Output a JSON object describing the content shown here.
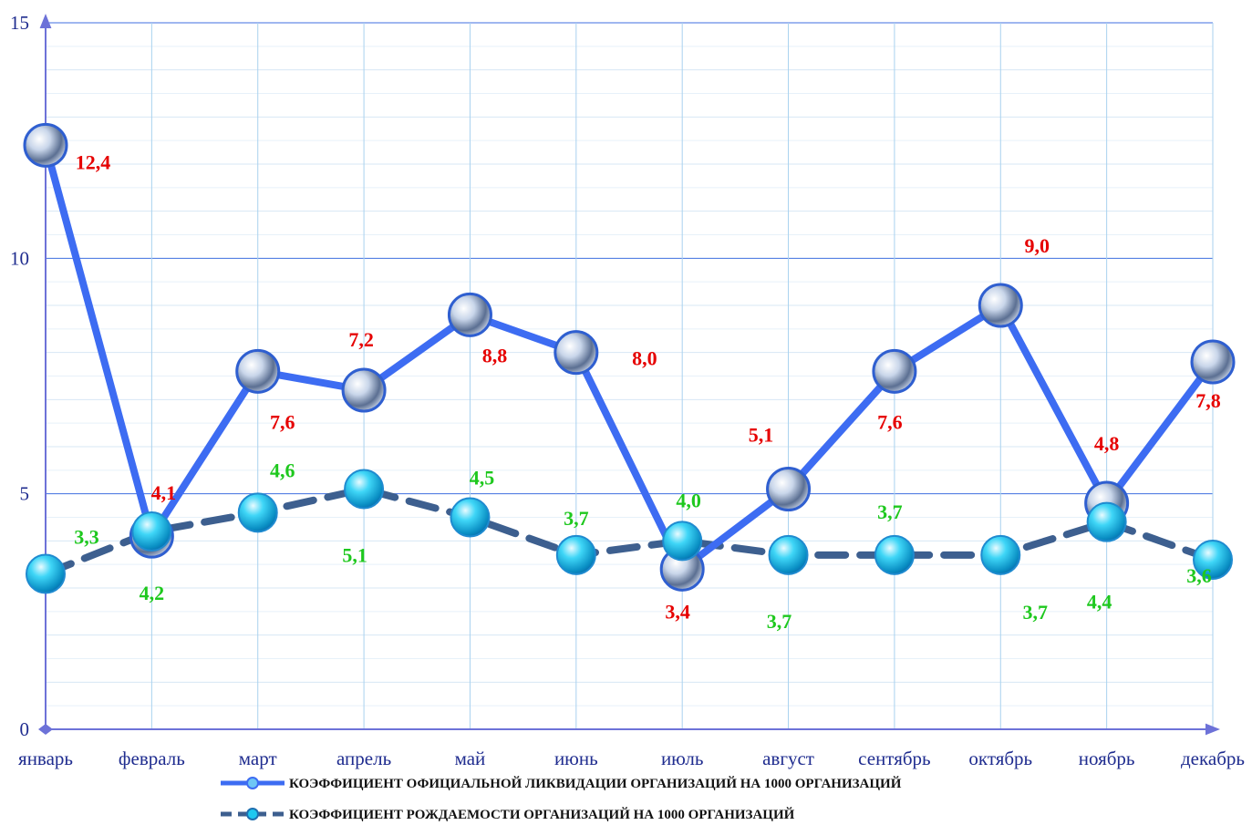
{
  "chart_data": {
    "type": "line",
    "title": "",
    "xlabel": "",
    "ylabel": "",
    "ylim": [
      0,
      15
    ],
    "yticks": [
      "0",
      "5",
      "10",
      "15"
    ],
    "categories": [
      "январь",
      "февраль",
      "март",
      "апрель",
      "май",
      "июнь",
      "июль",
      "август",
      "сентябрь",
      "октябрь",
      "ноябрь",
      "декабрь"
    ],
    "grid": true,
    "legend_position": "bottom",
    "series": [
      {
        "name": "КОЭФФИЦИЕНТ ОФИЦИАЛЬНОЙ ЛИКВИДАЦИИ ОРГАНИЗАЦИЙ НА 1000 ОРГАНИЗАЦИЙ",
        "values": [
          12.4,
          4.1,
          7.6,
          7.2,
          8.8,
          8.0,
          3.4,
          5.1,
          7.6,
          9.0,
          4.8,
          7.8
        ],
        "labels": [
          "12,4",
          "4,1",
          "7,6",
          "7,2",
          "8,8",
          "8,0",
          "3,4",
          "5,1",
          "7,6",
          "9,0",
          "4,8",
          "7,8"
        ],
        "color": "#3d6cf2",
        "label_color": "#e60000",
        "line_style": "solid"
      },
      {
        "name": "КОЭФФИЦИЕНТ  РОЖДАЕМОСТИ ОРГАНИЗАЦИЙ НА  1000  ОРГАНИЗАЦИЙ",
        "values": [
          3.3,
          4.2,
          4.6,
          5.1,
          4.5,
          3.7,
          4.0,
          3.7,
          3.7,
          3.7,
          4.4,
          3.6
        ],
        "labels": [
          "3,3",
          "4,2",
          "4,6",
          "5,1",
          "4,5",
          "3,7",
          "4,0",
          "3,7",
          "3,7",
          "3,7",
          "4,4",
          "3,6"
        ],
        "color": "#3d5f8f",
        "marker_color": "#1ec8f0",
        "label_color": "#1ec81e",
        "line_style": "dashed"
      }
    ]
  }
}
